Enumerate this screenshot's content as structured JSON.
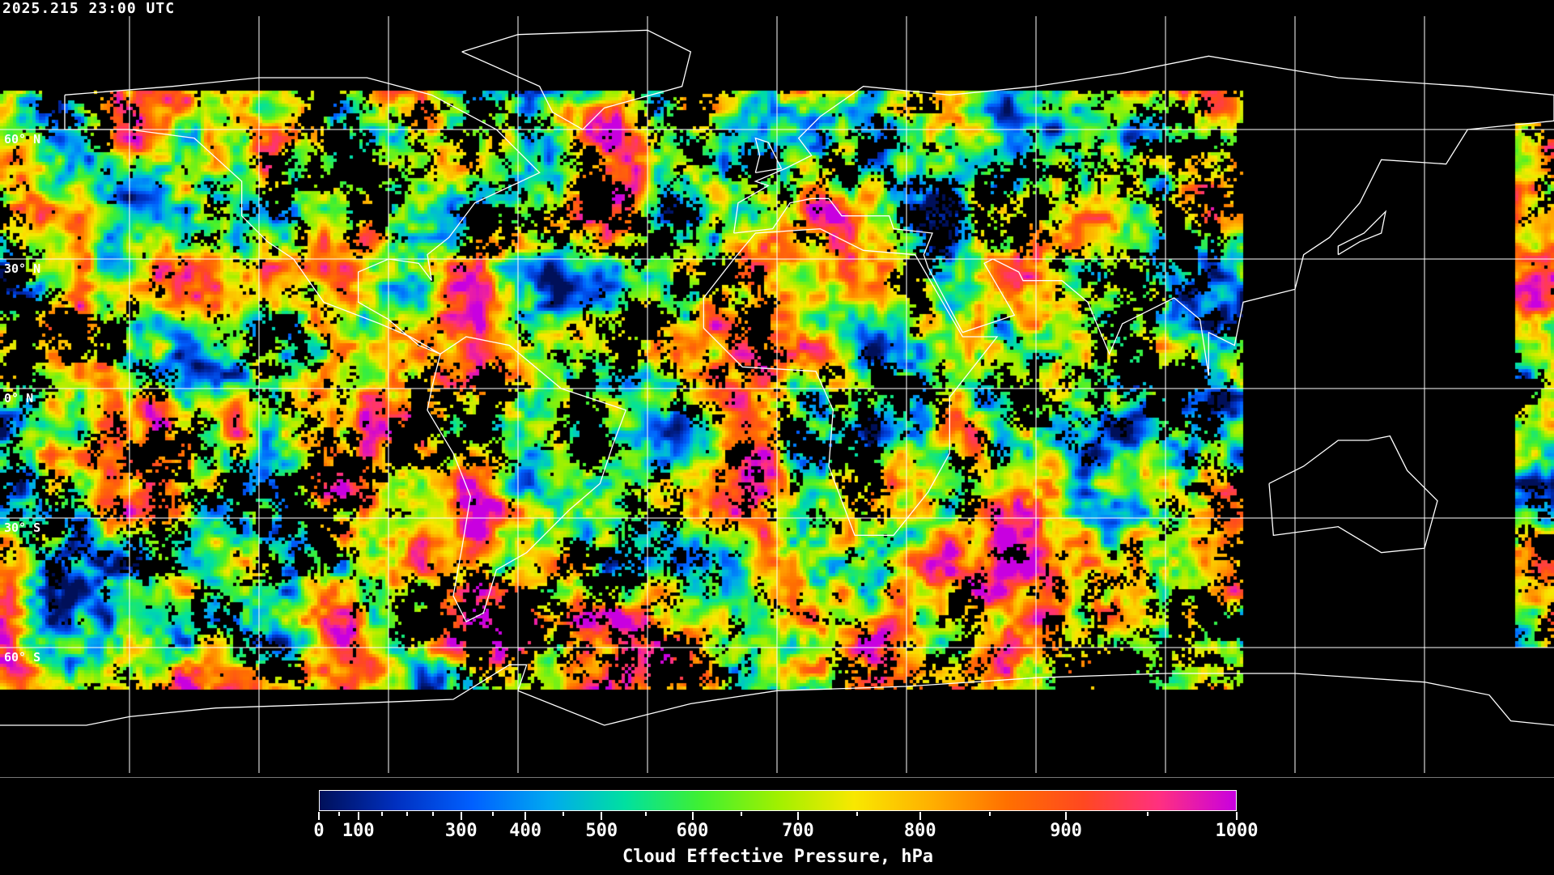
{
  "title": "2025.215 23:00 UTC",
  "map": {
    "projection": "equirectangular",
    "lon_range": [
      -180,
      180
    ],
    "lat_range": [
      -90,
      90
    ],
    "grid_lon_step": 30,
    "grid_lat_step": 30,
    "lat_labels": [
      "60° N",
      "30° N",
      "0° N",
      "30° S",
      "60° S"
    ],
    "grid_color": "#ffffff",
    "coastline_color": "#ffffff",
    "no_data_color": "#000000"
  },
  "colorbar": {
    "title": "Cloud Effective Pressure, hPa",
    "range": [
      0,
      1000
    ],
    "tick_labels": [
      "0",
      "100",
      "300",
      "400",
      "500",
      "600",
      "700",
      "800",
      "900",
      "1000"
    ],
    "minor_ticks": [
      50,
      150,
      200,
      250,
      350,
      450,
      550,
      650,
      750,
      850,
      950
    ],
    "colors": [
      "#00105a",
      "#0030c0",
      "#0060ff",
      "#00a8f0",
      "#00e0a0",
      "#40f030",
      "#a0f000",
      "#f8e800",
      "#ffb000",
      "#ff7000",
      "#ff4820",
      "#ff3080",
      "#c800e0"
    ]
  }
}
